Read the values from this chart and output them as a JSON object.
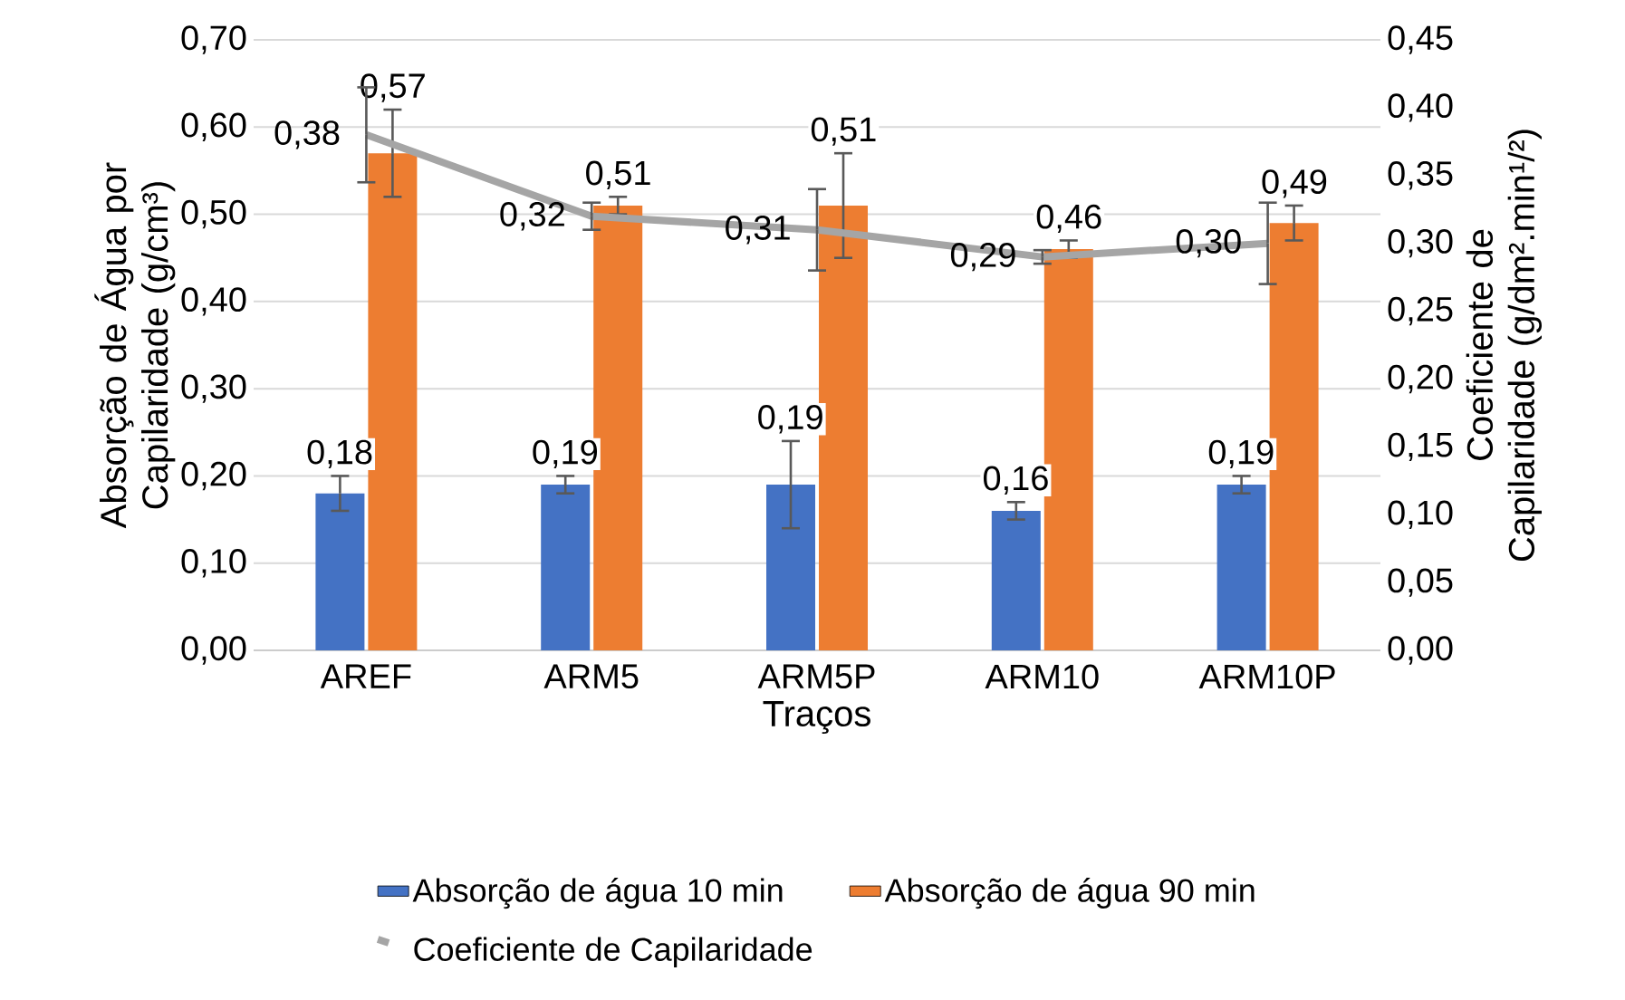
{
  "chart_data": {
    "type": "bar",
    "xlabel": "Traços",
    "ylabel": "Absorção de Água por Capilaridade (g/cm³)",
    "y2label": "Coeficiente de Capilaridade (g/dm².min¹/²)",
    "categories": [
      "AREF",
      "ARM5",
      "ARM5P",
      "ARM10",
      "ARM10P"
    ],
    "series": [
      {
        "name": "Absorção de água 10 min",
        "color": "#4472c4",
        "values": [
          0.18,
          0.19,
          0.19,
          0.16,
          0.19
        ],
        "errors": [
          0.02,
          0.01,
          0.05,
          0.01,
          0.01
        ],
        "value_labels": [
          "0,18",
          "0,19",
          "0,19",
          "0,16",
          "0,19"
        ]
      },
      {
        "name": "Absorção de água 90 min",
        "color": "#ed7d31",
        "values": [
          0.57,
          0.51,
          0.51,
          0.46,
          0.49
        ],
        "errors": [
          0.05,
          0.01,
          0.06,
          0.01,
          0.02
        ],
        "value_labels": [
          "0,57",
          "0,51",
          "0,51",
          "0,46",
          "0,49"
        ]
      },
      {
        "name": "Coeficiente de Capilaridade",
        "type": "line",
        "axis": "y2",
        "color": "#a5a5a5",
        "values": [
          0.38,
          0.32,
          0.31,
          0.29,
          0.3
        ],
        "errors": [
          0.035,
          0.01,
          0.03,
          0.005,
          0.03
        ],
        "value_labels": [
          "0,38",
          "0,32",
          "0,31",
          "0,29",
          "0,30"
        ]
      }
    ],
    "ylim": [
      0,
      0.7
    ],
    "yticks": [
      {
        "value": 0,
        "label": "0,00"
      },
      {
        "value": 0.1,
        "label": "0,10"
      },
      {
        "value": 0.2,
        "label": "0,20"
      },
      {
        "value": 0.3,
        "label": "0,30"
      },
      {
        "value": 0.4,
        "label": "0,40"
      },
      {
        "value": 0.5,
        "label": "0,50"
      },
      {
        "value": 0.6,
        "label": "0,60"
      },
      {
        "value": 0.7,
        "label": "0,70"
      }
    ],
    "y2lim": [
      0,
      0.45
    ],
    "y2ticks": [
      {
        "value": 0,
        "label": "0,00"
      },
      {
        "value": 0.05,
        "label": "0,05"
      },
      {
        "value": 0.1,
        "label": "0,10"
      },
      {
        "value": 0.15,
        "label": "0,15"
      },
      {
        "value": 0.2,
        "label": "0,20"
      },
      {
        "value": 0.25,
        "label": "0,25"
      },
      {
        "value": 0.3,
        "label": "0,30"
      },
      {
        "value": 0.35,
        "label": "0,35"
      },
      {
        "value": 0.4,
        "label": "0,40"
      },
      {
        "value": 0.45,
        "label": "0,45"
      }
    ],
    "grid": "y",
    "legend": "bottom",
    "line_style": "solid",
    "marker": "none"
  }
}
